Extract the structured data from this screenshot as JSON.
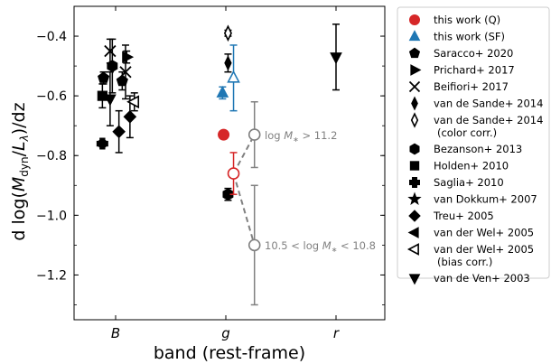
{
  "chart_data": {
    "type": "scatter",
    "title": "",
    "xlabel": "band (rest-frame)",
    "ylabel_parts": {
      "prefix": "d log(",
      "M": "M",
      "sub_dyn": "dyn",
      "slash": "/",
      "L": "L",
      "sub_lambda": "λ",
      "suffix": ")/dz"
    },
    "ylabel": "d log(M_dyn/L_λ)/dz",
    "categories": [
      "B",
      "g",
      "r"
    ],
    "ylim": [
      -1.35,
      -0.3
    ],
    "yticks": [
      -0.4,
      -0.6,
      -0.8,
      -1.0,
      -1.2
    ],
    "ytick_labels": [
      "−0.4",
      "−0.6",
      "−0.8",
      "−1.0",
      "−1.2"
    ],
    "grid": false,
    "legend_placement": "outside-right",
    "colors": {
      "red": "#d62728",
      "blue": "#1f77b4",
      "gray": "#808080",
      "black": "#000000"
    },
    "legend": [
      {
        "label": "this work (Q)",
        "marker": "circle",
        "color": "#d62728",
        "filled": true
      },
      {
        "label": "this work (SF)",
        "marker": "triangle-up",
        "color": "#1f77b4",
        "filled": true
      },
      {
        "label": "Saracco+ 2020",
        "marker": "pentagon",
        "color": "#000000",
        "filled": true
      },
      {
        "label": "Prichard+ 2017",
        "marker": "triangle-right",
        "color": "#000000",
        "filled": true
      },
      {
        "label": "Beifiori+ 2017",
        "marker": "x",
        "color": "#000000",
        "filled": true
      },
      {
        "label": "van de Sande+ 2014",
        "marker": "thin-diamond",
        "color": "#000000",
        "filled": true
      },
      {
        "label": "van de Sande+ 2014",
        "label2": "(color corr.)",
        "marker": "thin-diamond",
        "color": "#000000",
        "filled": false
      },
      {
        "label": "Bezanson+ 2013",
        "marker": "hexagon",
        "color": "#000000",
        "filled": true
      },
      {
        "label": "Holden+ 2010",
        "marker": "square",
        "color": "#000000",
        "filled": true
      },
      {
        "label": "Saglia+ 2010",
        "marker": "plus",
        "color": "#000000",
        "filled": true
      },
      {
        "label": "van Dokkum+ 2007",
        "marker": "star",
        "color": "#000000",
        "filled": true
      },
      {
        "label": "Treu+ 2005",
        "marker": "diamond",
        "color": "#000000",
        "filled": true
      },
      {
        "label": "van der Wel+ 2005",
        "marker": "triangle-left",
        "color": "#000000",
        "filled": true
      },
      {
        "label": "van der Wel+ 2005",
        "label2": "(bias corr.)",
        "marker": "triangle-left",
        "color": "#000000",
        "filled": false
      },
      {
        "label": "van de Ven+ 2003",
        "marker": "triangle-down",
        "color": "#000000",
        "filled": true
      }
    ],
    "points": [
      {
        "series": "this work (Q)",
        "marker": "circle",
        "color": "#d62728",
        "filled": true,
        "x": 1.98,
        "y": -0.73
      },
      {
        "series": "this work (SF)",
        "marker": "triangle-up",
        "color": "#1f77b4",
        "filled": true,
        "x": 1.97,
        "y": -0.59,
        "err": [
          0.02,
          0.02
        ]
      },
      {
        "series": "this work (SF)",
        "marker": "triangle-up",
        "color": "#1f77b4",
        "filled": false,
        "x": 2.07,
        "y": -0.54,
        "err": [
          0.11,
          0.11
        ]
      },
      {
        "series": "van de Sande+ 2014",
        "marker": "thin-diamond",
        "color": "#000000",
        "filled": true,
        "x": 2.02,
        "y": -0.49,
        "err": [
          0.03,
          0.03
        ]
      },
      {
        "series": "van de Sande+ 2014 (color corr.)",
        "marker": "thin-diamond",
        "color": "#000000",
        "filled": false,
        "x": 2.02,
        "y": -0.39,
        "err": [
          0.01,
          0.01
        ]
      },
      {
        "series": "Bezanson+ 2013",
        "marker": "hexagon",
        "color": "#000000",
        "filled": true,
        "x": 2.02,
        "y": -0.93,
        "err": [
          0.02,
          0.02
        ]
      },
      {
        "series": "this work (Q) 10.5<logM<10.8",
        "marker": "circle",
        "color": "#d62728",
        "filled": false,
        "x": 2.07,
        "y": -0.86,
        "err": [
          0.07,
          0.07
        ]
      },
      {
        "series": "log M* > 11.2",
        "marker": "circle",
        "color": "#808080",
        "filled": false,
        "x": 2.26,
        "y": -0.73,
        "err": [
          0.11,
          0.11
        ]
      },
      {
        "series": "10.5 < log M* < 10.8",
        "marker": "circle",
        "color": "#808080",
        "filled": false,
        "x": 2.26,
        "y": -1.1,
        "err": [
          0.2,
          0.2
        ]
      },
      {
        "series": "van de Ven+ 2003",
        "marker": "triangle-down",
        "color": "#000000",
        "filled": true,
        "x": 3.0,
        "y": -0.47,
        "err": [
          0.11,
          0.11
        ]
      },
      {
        "series": "Saglia+ 2010",
        "marker": "plus",
        "color": "#000000",
        "filled": true,
        "x": 0.88,
        "y": -0.76,
        "err": [
          0.01,
          0.01
        ]
      },
      {
        "series": "Holden+ 2010",
        "marker": "square",
        "color": "#000000",
        "filled": true,
        "x": 0.88,
        "y": -0.6,
        "err": [
          0.04,
          0.04
        ]
      },
      {
        "series": "Treu+ 2005",
        "marker": "pentagon",
        "color": "#000000",
        "filled": true,
        "x": 0.89,
        "y": -0.54,
        "err": [
          0.02,
          0.02
        ]
      },
      {
        "series": "Beifiori+ 2017",
        "marker": "x",
        "color": "#000000",
        "filled": true,
        "x": 0.95,
        "y": -0.45,
        "err": [
          0.04,
          0.04
        ]
      },
      {
        "series": "van de Sande+ 2014",
        "marker": "hexagon",
        "color": "#000000",
        "filled": true,
        "x": 0.97,
        "y": -0.5,
        "err": [
          0.09,
          0.09
        ]
      },
      {
        "series": "van der Wel+ 2005",
        "marker": "triangle-down",
        "color": "#000000",
        "filled": true,
        "x": 0.95,
        "y": -0.61,
        "err": [
          0.09,
          0.09
        ]
      },
      {
        "series": "van Dokkum+ 2007",
        "marker": "diamond",
        "color": "#000000",
        "filled": true,
        "x": 1.03,
        "y": -0.72,
        "err": [
          0.07,
          0.07
        ]
      },
      {
        "series": "Prichard+ 2017",
        "marker": "triangle-right",
        "color": "#000000",
        "filled": true,
        "x": 1.1,
        "y": -0.47,
        "err": [
          0.02,
          0.02
        ]
      },
      {
        "series": "Saracco+ 2020",
        "marker": "x",
        "color": "#000000",
        "filled": true,
        "x": 1.09,
        "y": -0.52,
        "err": [
          0.09,
          0.09
        ]
      },
      {
        "series": "Treu+ 2005",
        "marker": "pentagon",
        "color": "#000000",
        "filled": true,
        "x": 1.06,
        "y": -0.55,
        "err": [
          0.03,
          0.03
        ]
      },
      {
        "series": "van de Sande+ 2014",
        "marker": "diamond",
        "color": "#000000",
        "filled": true,
        "x": 1.13,
        "y": -0.67,
        "err": [
          0.07,
          0.07
        ]
      },
      {
        "series": "van der Wel+ 2005 (bias corr.)",
        "marker": "triangle-left",
        "color": "#000000",
        "filled": false,
        "x": 1.17,
        "y": -0.62,
        "err": [
          0.03,
          0.03
        ]
      }
    ],
    "dashed_connectors": [
      {
        "from": [
          2.07,
          -0.86
        ],
        "to": [
          2.26,
          -0.73
        ]
      },
      {
        "from": [
          2.07,
          -0.86
        ],
        "to": [
          2.26,
          -1.1
        ]
      }
    ],
    "annotations": [
      {
        "text_pre": "log ",
        "text_M": "M",
        "text_sub": "∗",
        "text_post": " > 11.2",
        "full": "log M∗ > 11.2",
        "x": 2.3,
        "y": -0.73,
        "color": "#808080"
      },
      {
        "text_pre": "10.5 < log ",
        "text_M": "M",
        "text_sub": "∗",
        "text_post": " < 10.8",
        "full": "10.5 < log M∗ < 10.8",
        "x": 2.3,
        "y": -1.1,
        "color": "#808080"
      }
    ]
  }
}
